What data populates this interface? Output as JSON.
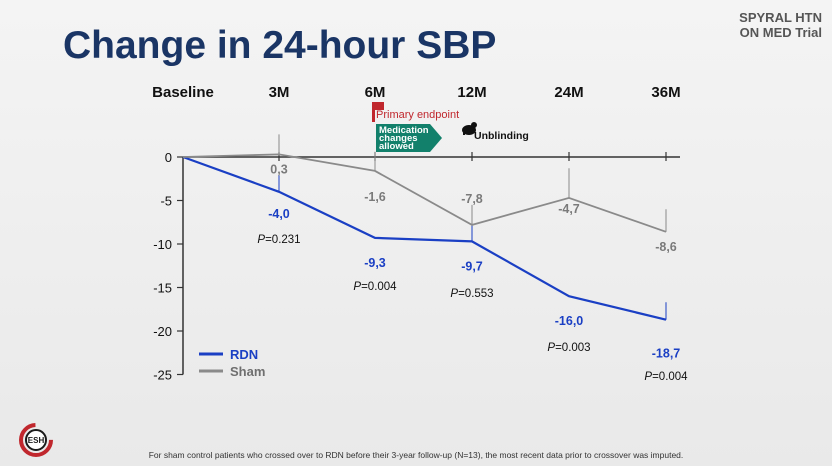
{
  "header": {
    "title": "Change in 24-hour SBP",
    "trial_line1": "SPYRAL HTN",
    "trial_line2": "ON MED Trial"
  },
  "annotations": {
    "primary_endpoint": "Primary endpoint",
    "medication_line1": "Medication",
    "medication_line2": "changes",
    "medication_line3": "allowed",
    "unblinding": "Unblinding"
  },
  "footnote": "For sham control patients who crossed over to RDN before their 3-year follow-up (N=13), the most recent data prior to crossover was imputed.",
  "logo_text": "ESH",
  "colors": {
    "rdn": "#1a3fc4",
    "sham": "#8a8a8a",
    "title": "#1a3565",
    "flag": "#c0272d",
    "arrow": "#12806b"
  },
  "chart_data": {
    "type": "line",
    "categories": [
      "Baseline",
      "3M",
      "6M",
      "12M",
      "24M",
      "36M"
    ],
    "ylim": [
      -25,
      0
    ],
    "yticks": [
      "0",
      "-5",
      "-10",
      "-15",
      "-20",
      "-25"
    ],
    "series": [
      {
        "name": "RDN",
        "values": [
          0,
          -4.0,
          -9.3,
          -9.7,
          -16.0,
          -18.7
        ],
        "labels": [
          "",
          "-4,0",
          "-9,3",
          "-9,7",
          "-16,0",
          "-18,7"
        ],
        "error_half": [
          0,
          1.9,
          0,
          2.0,
          0,
          2.0
        ]
      },
      {
        "name": "Sham",
        "values": [
          0,
          0.3,
          -1.6,
          -7.8,
          -4.7,
          -8.6
        ],
        "labels": [
          "",
          "0,3",
          "-1,6",
          "-7,8",
          "-4,7",
          "-8,6"
        ],
        "error_half": [
          0,
          2.3,
          2.2,
          2.3,
          3.4,
          2.6
        ]
      }
    ],
    "pvalues": [
      "",
      "0.231",
      "0.004",
      "0.553",
      "0.003",
      "0.004"
    ]
  }
}
